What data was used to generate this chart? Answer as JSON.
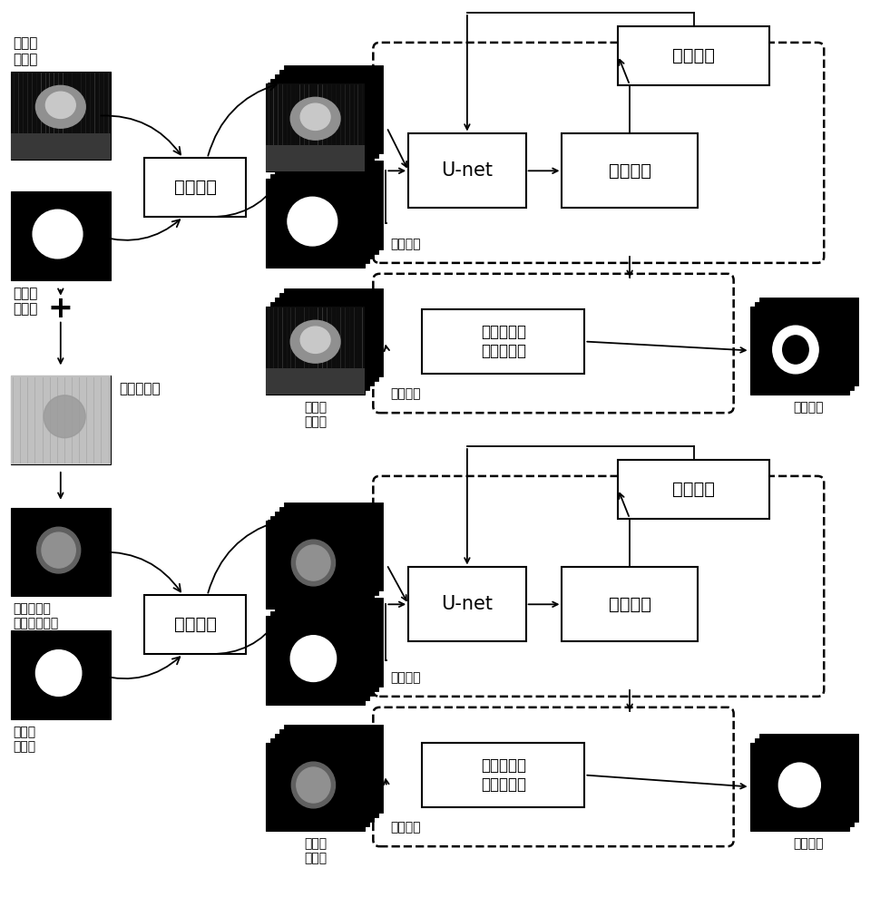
{
  "bg_color": "#ffffff",
  "labels": {
    "intensity_train": "强度图\n训练集",
    "intensity_label": "强度图\n标签集",
    "data_aug": "数据增强",
    "intensity_test": "强度图\n测试集",
    "original_phase": "原始相位图",
    "train_process": "训练过程",
    "test_process": "测试过程",
    "unet": "U-net",
    "prob_map": "概率图谱",
    "loss_func": "损失函数",
    "fcn1": "第一级全卷\n积神经网络",
    "fcn2": "第二级全卷\n积神经网络",
    "seg_result": "分割结果",
    "phase_train": "去除背景的\n相位图训练集",
    "phase_label": "相位图\n标签集",
    "data_aug2": "数据增强",
    "phase_test": "相位图\n测试集",
    "train_process2": "训练过程",
    "test_process2": "测试过程",
    "unet2": "U-net",
    "prob_map2": "概率图谱",
    "loss_func2": "损失函数",
    "seg_result2": "分割结果"
  }
}
